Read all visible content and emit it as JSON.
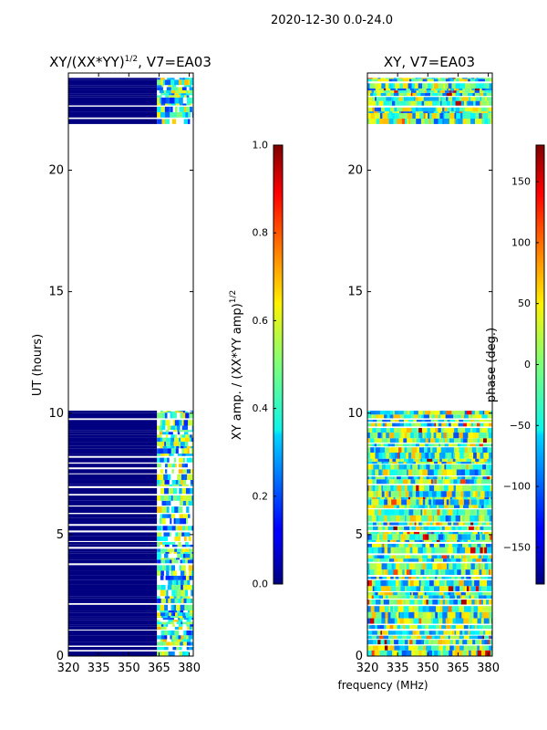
{
  "figure_title": "2020-12-30 0.0-24.0",
  "colors": {
    "stripe_dark": "#000080",
    "background": "#ffffff"
  },
  "chart_data": [
    {
      "type": "heatmap",
      "title": "XY/(XX*YY)",
      "title_superscript": "1/2",
      "title_suffix": ", V7=EA03",
      "xlabel": "",
      "ylabel": "UT (hours)",
      "xlim": [
        320,
        382
      ],
      "ylim": [
        0,
        24
      ],
      "xticks": [
        "320",
        "335",
        "350",
        "365",
        "380"
      ],
      "yticks": [
        "0",
        "5",
        "10",
        "15",
        "20"
      ],
      "colorbar": {
        "label": "XY amp. / (XX*YY amp)",
        "label_superscript": "1/2",
        "range": [
          0.0,
          1.0
        ],
        "ticks": [
          "0.0",
          "0.2",
          "0.4",
          "0.6",
          "0.8",
          "1.0"
        ]
      },
      "data_blocks_hours": [
        [
          0,
          10.1
        ],
        [
          21.9,
          23.8
        ]
      ]
    },
    {
      "type": "heatmap",
      "title": "XY, V7=EA03",
      "xlabel": "frequency (MHz)",
      "ylabel": "",
      "xlim": [
        320,
        382
      ],
      "ylim": [
        0,
        24
      ],
      "xticks": [
        "320",
        "335",
        "350",
        "365",
        "380"
      ],
      "yticks": [
        "0",
        "5",
        "10",
        "15",
        "20"
      ],
      "colorbar": {
        "label": "phase (deg.)",
        "range": [
          -180,
          180
        ],
        "ticks": [
          "-150",
          "−100",
          "−50",
          "0",
          "50",
          "100",
          "150"
        ],
        "tick_labels": [
          "−150",
          "−100",
          "−50",
          "0",
          "50",
          "100",
          "150"
        ]
      },
      "data_blocks_hours": [
        [
          0,
          10.1
        ],
        [
          21.9,
          23.8
        ]
      ]
    }
  ]
}
